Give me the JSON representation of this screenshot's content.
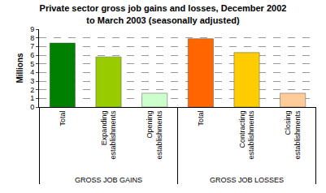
{
  "chart_data": {
    "type": "bar",
    "title": "Private sector gross job gains and losses, December 2002\nto March 2003 (seasonally adjusted)",
    "y_label": "Millions",
    "categories": [
      "Total",
      "Expanding establishments",
      "Opening establishments",
      "Total",
      "Contracting establishments",
      "Closing establishments"
    ],
    "category_groups": [
      "GROSS JOB GAINS",
      "GROSS JOB GAINS",
      "GROSS JOB GAINS",
      "GROSS JOB LOSSES",
      "GROSS JOB LOSSES",
      "GROSS JOB LOSSES"
    ],
    "values": [
      7.4,
      5.8,
      1.6,
      7.9,
      6.3,
      1.6
    ],
    "colors": [
      "#008000",
      "#99cc00",
      "#ccffcc",
      "#ff6600",
      "#ffcc00",
      "#ffcc99"
    ],
    "ylim": [
      0,
      9
    ],
    "yticks": [
      0,
      1,
      2,
      3,
      4,
      5,
      6,
      7,
      8,
      9
    ],
    "grid": true
  }
}
